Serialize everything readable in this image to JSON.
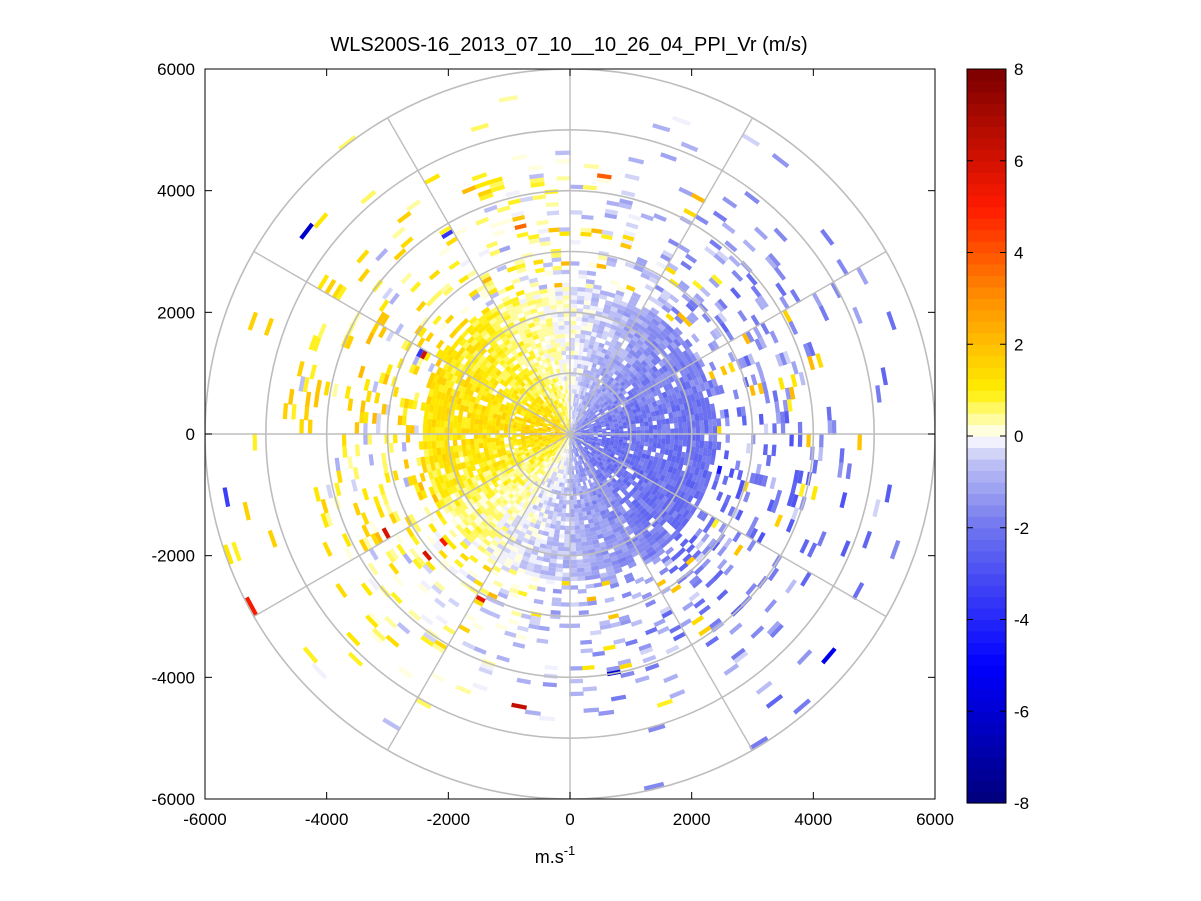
{
  "chart_data": {
    "type": "heatmap",
    "subtype": "polar PPI radial-velocity scan",
    "title": "WLS200S-16_2013_07_10__10_26_04_PPI_Vr (m/s)",
    "xlabel": "m.s",
    "xlabel_superscript": "-1",
    "ylabel": "",
    "xlim": [
      -6000,
      6000
    ],
    "ylim": [
      -6000,
      6000
    ],
    "xticks": [
      -6000,
      -4000,
      -2000,
      0,
      2000,
      4000,
      6000
    ],
    "yticks": [
      6000,
      4000,
      2000,
      0,
      -2000,
      -4000,
      -6000
    ],
    "polar_grid": {
      "ring_radii_m": [
        1000,
        2000,
        3000,
        4000,
        5000,
        6000
      ],
      "spoke_angles_deg": [
        0,
        30,
        60,
        90,
        120,
        150,
        180,
        210,
        240,
        270,
        300,
        330
      ],
      "max_range_m": 6000
    },
    "colorbar": {
      "min": -8,
      "max": 8,
      "ticks": [
        8,
        6,
        4,
        2,
        0,
        -2,
        -4,
        -6,
        -8
      ],
      "levels": 64,
      "colormap": "blue-white-yellow-red"
    },
    "velocity_field": {
      "description": "Near-field: negative (blue, about -2 m/s) east of north-south line, positive (yellow/orange, about +1 m/s) to the west; sparse returns beyond 3000 m",
      "near_dense_range_m": 2400,
      "sparse_range_m": [
        2400,
        6000
      ],
      "east_sector_velocity_ms": -2.0,
      "west_sector_velocity_ms": 1.0,
      "south_sector_velocity_ms": -0.8,
      "peak_positive_ms": 6.5,
      "peak_negative_ms": -7.0
    }
  }
}
